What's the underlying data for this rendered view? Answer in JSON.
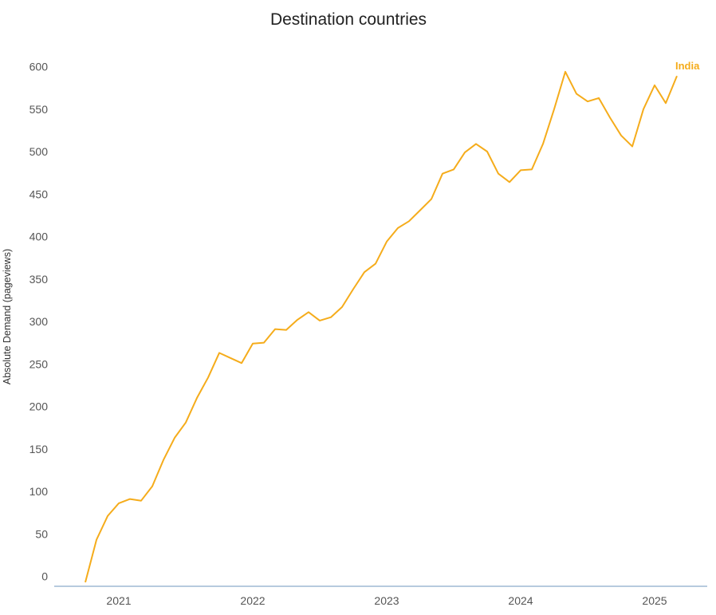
{
  "chart_data": {
    "type": "line",
    "title": "Destination countries",
    "xlabel": "",
    "ylabel": "Absolute Demand (pageviews)",
    "ylim": [
      0,
      600
    ],
    "yticks": [
      0,
      50,
      100,
      150,
      200,
      250,
      300,
      350,
      400,
      450,
      500,
      550,
      600
    ],
    "xticks": [
      "2021",
      "2022",
      "2023",
      "2024",
      "2025"
    ],
    "grid": false,
    "line_color": "#F5AC1B",
    "axis_color": "#9FB9D3",
    "series": [
      {
        "name": "India",
        "x": [
          "2020-10",
          "2020-11",
          "2020-12",
          "2021-01",
          "2021-02",
          "2021-03",
          "2021-04",
          "2021-05",
          "2021-06",
          "2021-07",
          "2021-08",
          "2021-09",
          "2021-10",
          "2021-11",
          "2021-12",
          "2022-01",
          "2022-02",
          "2022-03",
          "2022-04",
          "2022-05",
          "2022-06",
          "2022-07",
          "2022-08",
          "2022-09",
          "2022-10",
          "2022-11",
          "2022-12",
          "2023-01",
          "2023-02",
          "2023-03",
          "2023-04",
          "2023-05",
          "2023-06",
          "2023-07",
          "2023-08",
          "2023-09",
          "2023-10",
          "2023-11",
          "2023-12",
          "2024-01",
          "2024-02",
          "2024-03",
          "2024-04",
          "2024-05",
          "2024-06",
          "2024-07",
          "2024-08",
          "2024-09",
          "2024-10",
          "2024-11",
          "2024-12",
          "2025-01",
          "2025-02",
          "2025-03"
        ],
        "values": [
          -7,
          43,
          71,
          86,
          91,
          89,
          106,
          137,
          163,
          181,
          210,
          234,
          263,
          257,
          251,
          274,
          275,
          291,
          290,
          302,
          311,
          301,
          305,
          317,
          338,
          358,
          368,
          394,
          410,
          418,
          431,
          444,
          474,
          479,
          499,
          509,
          500,
          474,
          464,
          478,
          479,
          509,
          550,
          594,
          568,
          559,
          563,
          540,
          519,
          506,
          550,
          578,
          557,
          589
        ]
      }
    ]
  }
}
